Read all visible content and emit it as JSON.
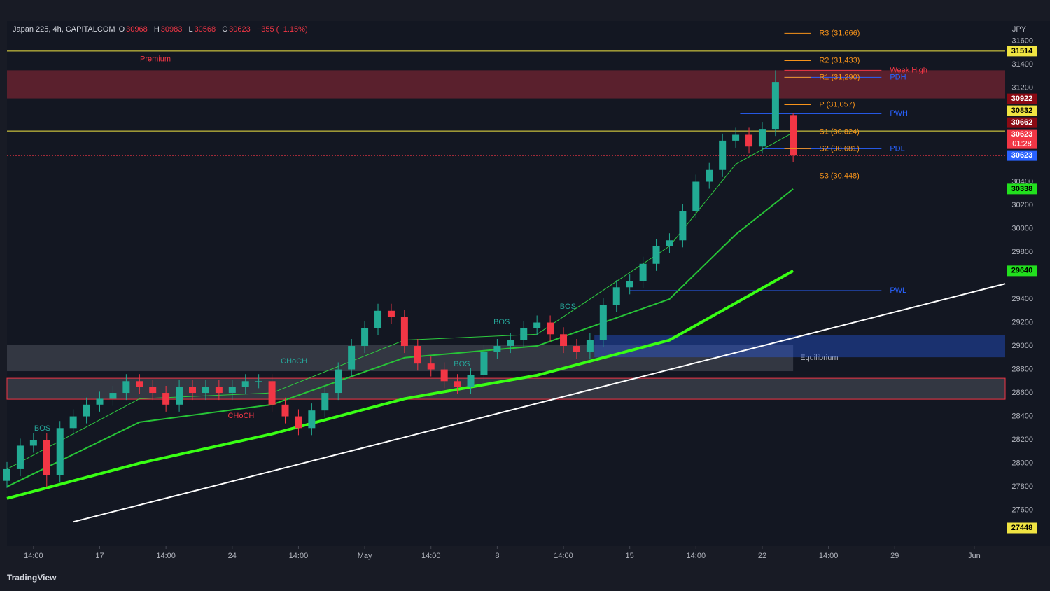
{
  "header": {
    "symbol": "Japan 225, 4h, CAPITALCOM",
    "o_label": "O",
    "open": 30968,
    "h_label": "H",
    "high": 30983,
    "l_label": "L",
    "low": 30568,
    "c_label": "C",
    "close": 30623,
    "change": "−355 (−1.15%)"
  },
  "currency": "JPY",
  "countdown": "01:28",
  "brand": "TradingView",
  "chart_data": {
    "type": "candlestick",
    "x": [
      0,
      3,
      6,
      9,
      12,
      15,
      18,
      21,
      24,
      27,
      30,
      33,
      36,
      39,
      42,
      45,
      48,
      51,
      54,
      57,
      60,
      63,
      66,
      69,
      72,
      75,
      78,
      81,
      84,
      87,
      90,
      93,
      96,
      99,
      102,
      105,
      108,
      111,
      114,
      117,
      120,
      123,
      126,
      129,
      132,
      135,
      138,
      141,
      144,
      147,
      150,
      153,
      156,
      159,
      162,
      165,
      168,
      171,
      174,
      178
    ],
    "open": [
      27850,
      27950,
      28150,
      28200,
      27900,
      28300,
      28400,
      28500,
      28550,
      28600,
      28700,
      28650,
      28600,
      28500,
      28650,
      28600,
      28650,
      28600,
      28650,
      28700,
      28700,
      28500,
      28400,
      28300,
      28450,
      28600,
      28800,
      29000,
      29150,
      29300,
      29250,
      29000,
      28850,
      28800,
      28700,
      28650,
      28750,
      28950,
      29000,
      29050,
      29150,
      29200,
      29100,
      29000,
      28950,
      29050,
      29350,
      29500,
      29550,
      29700,
      29850,
      29900,
      30150,
      30400,
      30500,
      30750,
      30800,
      30700,
      30850,
      30968
    ],
    "high": [
      28010,
      28210,
      28260,
      28260,
      28360,
      28460,
      28560,
      28610,
      28660,
      28760,
      28760,
      28710,
      28660,
      28710,
      28710,
      28710,
      28710,
      28710,
      28760,
      28760,
      28760,
      28560,
      28460,
      28510,
      28660,
      28860,
      29060,
      29210,
      29360,
      29360,
      29310,
      29060,
      28910,
      28860,
      28760,
      28810,
      29010,
      29060,
      29110,
      29210,
      29260,
      29260,
      29160,
      29060,
      29110,
      29410,
      29560,
      29610,
      29760,
      29910,
      29960,
      30210,
      30460,
      30560,
      30810,
      30860,
      30860,
      30910,
      31350,
      30983
    ],
    "low": [
      27790,
      27890,
      28090,
      27800,
      27840,
      28240,
      28340,
      28440,
      28490,
      28540,
      28590,
      28540,
      28440,
      28440,
      28540,
      28540,
      28540,
      28540,
      28590,
      28640,
      28440,
      28340,
      28240,
      28240,
      28390,
      28540,
      28740,
      28940,
      29090,
      29190,
      28940,
      28790,
      28740,
      28640,
      28590,
      28590,
      28690,
      28890,
      28940,
      28990,
      29090,
      29040,
      28940,
      28890,
      28890,
      28990,
      29290,
      29440,
      29490,
      29640,
      29790,
      29840,
      30090,
      30340,
      30440,
      30690,
      30640,
      30640,
      30790,
      30568
    ],
    "close": [
      27950,
      28150,
      28200,
      27900,
      28300,
      28400,
      28500,
      28550,
      28600,
      28700,
      28650,
      28600,
      28500,
      28650,
      28600,
      28650,
      28600,
      28650,
      28700,
      28700,
      28500,
      28400,
      28300,
      28450,
      28600,
      28800,
      29000,
      29150,
      29300,
      29250,
      29000,
      28850,
      28800,
      28700,
      28650,
      28750,
      28950,
      29000,
      29050,
      29150,
      29200,
      29100,
      29000,
      28950,
      29050,
      29350,
      29500,
      29550,
      29700,
      29850,
      29900,
      30150,
      30400,
      30500,
      30750,
      30800,
      30700,
      30850,
      31250,
      30623
    ],
    "up_color": "#22ab94",
    "down_color": "#f23645",
    "xlim": [
      0,
      226
    ],
    "xticks": [
      {
        "value": 6,
        "label": "14:00"
      },
      {
        "value": 21,
        "label": "17"
      },
      {
        "value": 36,
        "label": "14:00"
      },
      {
        "value": 51,
        "label": "24"
      },
      {
        "value": 66,
        "label": "14:00"
      },
      {
        "value": 81,
        "label": "May"
      },
      {
        "value": 96,
        "label": "14:00"
      },
      {
        "value": 111,
        "label": "8"
      },
      {
        "value": 126,
        "label": "14:00"
      },
      {
        "value": 141,
        "label": "15"
      },
      {
        "value": 156,
        "label": "14:00"
      },
      {
        "value": 171,
        "label": "22"
      },
      {
        "value": 186,
        "label": "14:00"
      },
      {
        "value": 201,
        "label": "29"
      },
      {
        "value": 219,
        "label": "Jun"
      }
    ],
    "ylim": [
      27293,
      31770
    ],
    "yticks": [
      31600,
      31400,
      31200,
      30400,
      30200,
      30000,
      29800,
      29400,
      29200,
      29000,
      28800,
      28600,
      28400,
      28200,
      28000,
      27800,
      27600
    ],
    "grid": false,
    "moving_averages": [
      {
        "color": "#2ecc40",
        "width": 1,
        "x": [
          0,
          30,
          60,
          90,
          120,
          150,
          165,
          178
        ],
        "values": [
          27950,
          28550,
          28600,
          29050,
          29100,
          29850,
          30550,
          30820
        ]
      },
      {
        "color": "#27c437",
        "width": 2,
        "x": [
          0,
          30,
          60,
          90,
          120,
          150,
          165,
          178
        ],
        "values": [
          27800,
          28350,
          28500,
          28900,
          29000,
          29400,
          29950,
          30338
        ]
      },
      {
        "color": "#39ff14",
        "width": 4,
        "x": [
          0,
          30,
          60,
          90,
          120,
          150,
          178
        ],
        "values": [
          27700,
          28000,
          28250,
          28550,
          28750,
          29050,
          29640
        ]
      }
    ],
    "zones": [
      {
        "ymin": 31110,
        "ymax": 31350,
        "x0": 0,
        "x1": 226,
        "color": "rgba(242,54,69,0.32)",
        "label": "Premium",
        "label_pos": "inside-top"
      },
      {
        "ymin": 28785,
        "ymax": 29012,
        "x0": 0,
        "x1": 178,
        "color": "rgba(120,123,134,0.32)",
        "label": "Equilibrium",
        "label_pos": "right-bottom"
      },
      {
        "ymin": 28546,
        "ymax": 28725,
        "x0": 0,
        "x1": 226,
        "color": "rgba(120,123,134,0.32)",
        "border": "#f23645"
      },
      {
        "ymin": 28904,
        "ymax": 29095,
        "x0": 133,
        "x1": 226,
        "color": "rgba(41,98,255,0.35)"
      }
    ],
    "levels": [
      {
        "value": 31514,
        "color": "#f0e442",
        "x0": 0,
        "x1": 226
      },
      {
        "value": 30832,
        "color": "#f0e442",
        "x0": 0,
        "x1": 226
      },
      {
        "value": 30623,
        "color": "#f23645",
        "x0": 0,
        "x1": 226,
        "dash": true
      },
      {
        "value": 31290,
        "color": "#2962ff",
        "x0": 176,
        "x1": 198,
        "label": "PDH"
      },
      {
        "value": 30980,
        "color": "#2962ff",
        "x0": 166,
        "x1": 198,
        "label": "PWH"
      },
      {
        "value": 30681,
        "color": "#2962ff",
        "x0": 171,
        "x1": 198,
        "label": "PDL"
      },
      {
        "value": 29472,
        "color": "#2962ff",
        "x0": 141,
        "x1": 198,
        "label": "PWL"
      },
      {
        "value": 31350,
        "color": "#f23645",
        "x0": 176,
        "x1": 198,
        "label": "Week High"
      }
    ],
    "pivots": {
      "x0": 176,
      "x1": 182,
      "color": "#f7931a",
      "levels": [
        {
          "value": 31666,
          "label": "R3 (31,666)"
        },
        {
          "value": 31433,
          "label": "R2 (31,433)"
        },
        {
          "value": 31290,
          "label": "R1 (31,290)"
        },
        {
          "value": 31057,
          "label": "P (31,057)"
        },
        {
          "value": 30824,
          "label": "S1 (30,824)"
        },
        {
          "value": 30681,
          "label": "S2 (30,681)"
        },
        {
          "value": 30448,
          "label": "S3 (30,448)"
        }
      ]
    },
    "trendline": {
      "x": [
        15,
        226
      ],
      "values": [
        27500,
        29530
      ],
      "color": "#ffffff"
    },
    "annotations": [
      {
        "x": 8,
        "y": 28296,
        "text": "BOS",
        "color": "#26a69a"
      },
      {
        "x": 65,
        "y": 28869,
        "text": "CHoCH",
        "color": "#26a69a"
      },
      {
        "x": 53,
        "y": 28403,
        "text": "CHoCH",
        "color": "#f23645"
      },
      {
        "x": 103,
        "y": 28845,
        "text": "BOS",
        "color": "#26a69a"
      },
      {
        "x": 112,
        "y": 29203,
        "text": "BOS",
        "color": "#26a69a"
      },
      {
        "x": 127,
        "y": 29334,
        "text": "BOS",
        "color": "#26a69a"
      }
    ],
    "price_labels": [
      {
        "value": 31514,
        "bg": "#f0e442",
        "fg": "#000000"
      },
      {
        "value": 30922,
        "bg": "#8b0a14",
        "fg": "#ffffff"
      },
      {
        "value": 30832,
        "bg": "#f0e442",
        "fg": "#000000"
      },
      {
        "value": 30662,
        "bg": "#8b0a14",
        "fg": "#ffffff"
      },
      {
        "value": 30623,
        "bg": "#f23645",
        "fg": "#ffffff",
        "countdown": true
      },
      {
        "value": 30623,
        "bg": "#2962ff",
        "fg": "#ffffff"
      },
      {
        "value": 30338,
        "bg": "#22e01e",
        "fg": "#000000"
      },
      {
        "value": 29640,
        "bg": "#22e01e",
        "fg": "#000000"
      },
      {
        "value": 27448,
        "bg": "#f0e442",
        "fg": "#000000"
      }
    ]
  }
}
